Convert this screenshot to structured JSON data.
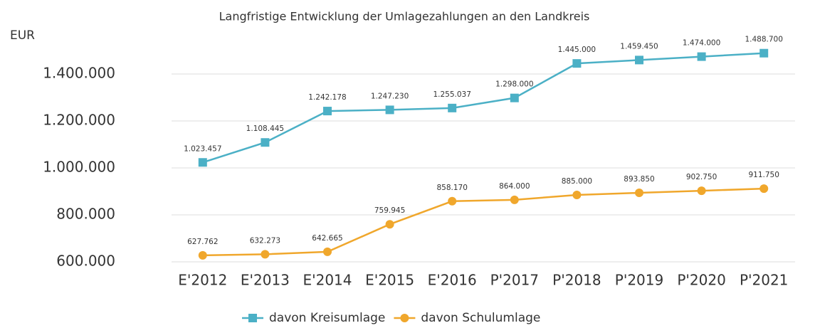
{
  "chart_data": {
    "type": "line",
    "title": "Langfristige Entwicklung der Umlagezahlungen an den Landkreis",
    "y_label": "EUR",
    "categories": [
      "E'2012",
      "E'2013",
      "E'2014",
      "E'2015",
      "E'2016",
      "P'2017",
      "P'2018",
      "P'2019",
      "P'2020",
      "P'2021"
    ],
    "series": [
      {
        "name": "davon Kreisumlage",
        "color": "#4bb0c6",
        "marker": "square",
        "values": [
          1023457,
          1108445,
          1242178,
          1247230,
          1255037,
          1298000,
          1445000,
          1459450,
          1474000,
          1488700
        ],
        "value_labels": [
          "1.023.457",
          "1.108.445",
          "1.242.178",
          "1.247.230",
          "1.255.037",
          "1.298.000",
          "1.445.000",
          "1.459.450",
          "1.474.000",
          "1.488.700"
        ]
      },
      {
        "name": "davon Schulumlage",
        "color": "#f0a72c",
        "marker": "circle",
        "values": [
          627762,
          632273,
          642665,
          759945,
          858170,
          864000,
          885000,
          893850,
          902750,
          911750
        ],
        "value_labels": [
          "627.762",
          "632.273",
          "642.665",
          "759.945",
          "858.170",
          "864.000",
          "885.000",
          "893.850",
          "902.750",
          "911.750"
        ]
      }
    ],
    "ylim": [
      600000,
      1500000
    ],
    "yticks": [
      {
        "value": 600000,
        "label": "600.000"
      },
      {
        "value": 800000,
        "label": "800.000"
      },
      {
        "value": 1000000,
        "label": "1.000.000"
      },
      {
        "value": 1200000,
        "label": "1.200.000"
      },
      {
        "value": 1400000,
        "label": "1.400.000"
      }
    ],
    "grid": true,
    "legend": "bottom"
  }
}
